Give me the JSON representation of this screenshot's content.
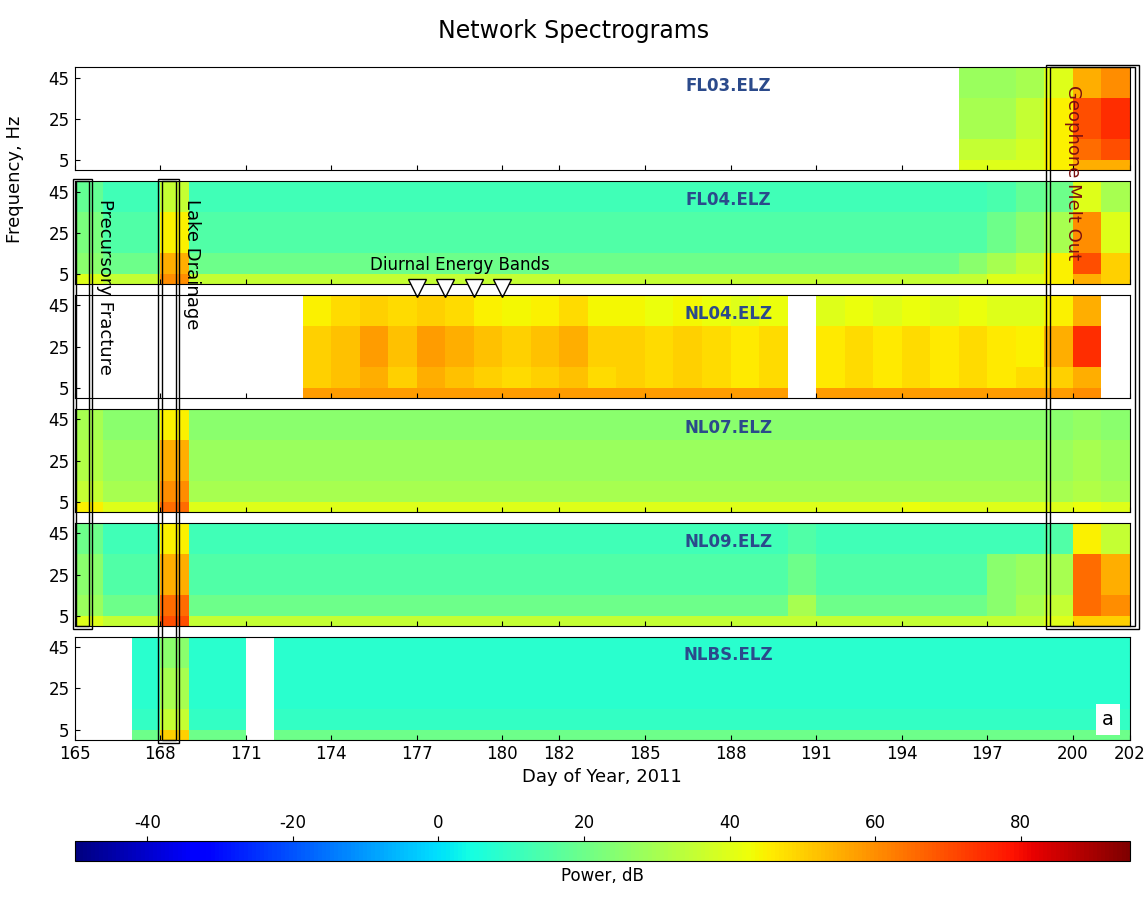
{
  "chart_data": {
    "type": "spectrogram",
    "title": "Network Spectrograms",
    "x_label": "Day of Year, 2011",
    "y_label": "Frequency, Hz",
    "xlim": [
      165,
      202
    ],
    "xticks": [
      165,
      168,
      171,
      174,
      177,
      180,
      182,
      185,
      188,
      191,
      194,
      197,
      200,
      202
    ],
    "ylim": [
      0,
      50
    ],
    "yticks": [
      5,
      25,
      45
    ],
    "x_edges": [
      165,
      166,
      167,
      168,
      169,
      170,
      171,
      172,
      173,
      174,
      175,
      176,
      177,
      178,
      179,
      180,
      181,
      182,
      183,
      184,
      185,
      186,
      187,
      188,
      189,
      190,
      191,
      192,
      193,
      194,
      195,
      196,
      197,
      198,
      199,
      200,
      201,
      202
    ],
    "y_edges": [
      0,
      5,
      15,
      35,
      50
    ],
    "panels": [
      {
        "name": "FL03.ELZ",
        "cells": [
          [
            null,
            null,
            null,
            null,
            null,
            null,
            null,
            null,
            null,
            null,
            null,
            null,
            null,
            null,
            null,
            null,
            null,
            null,
            null,
            null,
            null,
            null,
            null,
            null,
            null,
            null,
            null,
            null,
            null,
            null,
            null,
            40,
            40,
            40,
            45,
            55,
            55
          ],
          [
            null,
            null,
            null,
            null,
            null,
            null,
            null,
            null,
            null,
            null,
            null,
            null,
            null,
            null,
            null,
            null,
            null,
            null,
            null,
            null,
            null,
            null,
            null,
            null,
            null,
            null,
            null,
            null,
            null,
            null,
            null,
            35,
            35,
            38,
            45,
            65,
            70
          ],
          [
            null,
            null,
            null,
            null,
            null,
            null,
            null,
            null,
            null,
            null,
            null,
            null,
            null,
            null,
            null,
            null,
            null,
            null,
            null,
            null,
            null,
            null,
            null,
            null,
            null,
            null,
            null,
            null,
            null,
            null,
            null,
            30,
            30,
            35,
            45,
            70,
            75
          ],
          [
            null,
            null,
            null,
            null,
            null,
            null,
            null,
            null,
            null,
            null,
            null,
            null,
            null,
            null,
            null,
            null,
            null,
            null,
            null,
            null,
            null,
            null,
            null,
            null,
            null,
            null,
            null,
            null,
            null,
            null,
            null,
            28,
            28,
            30,
            40,
            55,
            60
          ]
        ]
      },
      {
        "name": "FL04.ELZ",
        "cells": [
          [
            40,
            35,
            35,
            60,
            35,
            35,
            35,
            35,
            35,
            35,
            35,
            35,
            35,
            35,
            35,
            35,
            35,
            35,
            35,
            35,
            35,
            35,
            35,
            35,
            35,
            35,
            35,
            35,
            35,
            35,
            35,
            35,
            40,
            40,
            45,
            55,
            50
          ],
          [
            25,
            20,
            20,
            55,
            20,
            20,
            20,
            20,
            20,
            20,
            20,
            20,
            20,
            20,
            20,
            20,
            20,
            20,
            20,
            20,
            20,
            20,
            20,
            20,
            20,
            20,
            20,
            20,
            20,
            20,
            20,
            25,
            30,
            35,
            45,
            70,
            50
          ],
          [
            22,
            15,
            15,
            45,
            15,
            15,
            15,
            15,
            15,
            15,
            15,
            15,
            15,
            15,
            15,
            15,
            15,
            15,
            15,
            15,
            15,
            15,
            15,
            15,
            15,
            15,
            15,
            15,
            15,
            15,
            15,
            15,
            20,
            25,
            30,
            60,
            40
          ],
          [
            18,
            12,
            12,
            35,
            12,
            12,
            12,
            12,
            12,
            12,
            12,
            12,
            12,
            12,
            12,
            12,
            12,
            12,
            12,
            12,
            12,
            12,
            12,
            12,
            12,
            12,
            12,
            12,
            12,
            12,
            12,
            12,
            14,
            18,
            20,
            40,
            30
          ]
        ]
      },
      {
        "name": "NL04.ELZ",
        "cells": [
          [
            null,
            null,
            null,
            null,
            null,
            null,
            null,
            null,
            58,
            58,
            58,
            58,
            58,
            58,
            58,
            58,
            58,
            58,
            58,
            58,
            58,
            58,
            58,
            58,
            58,
            null,
            58,
            58,
            58,
            58,
            58,
            58,
            58,
            58,
            58,
            60,
            null
          ],
          [
            null,
            null,
            null,
            null,
            null,
            null,
            null,
            null,
            50,
            52,
            55,
            50,
            55,
            52,
            50,
            48,
            50,
            52,
            48,
            50,
            48,
            50,
            48,
            46,
            48,
            null,
            46,
            48,
            46,
            48,
            46,
            48,
            46,
            48,
            50,
            55,
            null
          ],
          [
            null,
            null,
            null,
            null,
            null,
            null,
            null,
            null,
            50,
            52,
            58,
            52,
            58,
            55,
            52,
            50,
            52,
            55,
            50,
            50,
            48,
            50,
            48,
            46,
            48,
            null,
            46,
            48,
            46,
            48,
            46,
            48,
            46,
            45,
            55,
            75,
            null
          ],
          [
            null,
            null,
            null,
            null,
            null,
            null,
            null,
            null,
            45,
            48,
            50,
            48,
            50,
            48,
            45,
            44,
            45,
            48,
            44,
            44,
            42,
            44,
            42,
            40,
            42,
            null,
            40,
            42,
            40,
            42,
            40,
            42,
            40,
            40,
            45,
            55,
            null
          ]
        ]
      },
      {
        "name": "NL07.ELZ",
        "cells": [
          [
            45,
            40,
            40,
            65,
            40,
            40,
            40,
            40,
            40,
            40,
            40,
            40,
            40,
            40,
            40,
            40,
            40,
            40,
            40,
            40,
            40,
            40,
            40,
            40,
            40,
            40,
            40,
            40,
            40,
            42,
            40,
            40,
            40,
            40,
            40,
            42,
            40
          ],
          [
            35,
            30,
            30,
            60,
            30,
            30,
            30,
            30,
            30,
            30,
            30,
            30,
            30,
            30,
            30,
            30,
            30,
            30,
            30,
            30,
            30,
            30,
            30,
            30,
            30,
            30,
            30,
            30,
            30,
            30,
            30,
            30,
            30,
            30,
            30,
            32,
            30
          ],
          [
            32,
            28,
            28,
            55,
            28,
            28,
            28,
            28,
            28,
            28,
            28,
            28,
            28,
            28,
            28,
            28,
            28,
            28,
            28,
            28,
            28,
            28,
            28,
            28,
            28,
            28,
            28,
            28,
            28,
            28,
            28,
            28,
            28,
            28,
            28,
            30,
            28
          ],
          [
            30,
            25,
            25,
            45,
            25,
            25,
            25,
            25,
            25,
            25,
            25,
            25,
            25,
            25,
            25,
            25,
            25,
            25,
            25,
            25,
            25,
            25,
            25,
            25,
            25,
            25,
            25,
            25,
            25,
            25,
            25,
            25,
            25,
            25,
            25,
            27,
            25
          ]
        ]
      },
      {
        "name": "NL09.ELZ",
        "cells": [
          [
            40,
            35,
            35,
            70,
            35,
            35,
            35,
            35,
            35,
            35,
            35,
            35,
            35,
            35,
            35,
            35,
            35,
            35,
            35,
            35,
            35,
            35,
            35,
            35,
            35,
            35,
            35,
            35,
            35,
            35,
            35,
            35,
            35,
            35,
            40,
            50,
            50
          ],
          [
            28,
            20,
            20,
            65,
            20,
            20,
            20,
            20,
            20,
            20,
            20,
            20,
            20,
            20,
            20,
            20,
            20,
            20,
            20,
            20,
            20,
            20,
            20,
            20,
            20,
            30,
            20,
            20,
            20,
            20,
            20,
            20,
            25,
            30,
            35,
            65,
            60
          ],
          [
            25,
            15,
            15,
            55,
            15,
            15,
            15,
            15,
            15,
            15,
            15,
            15,
            15,
            15,
            15,
            15,
            15,
            15,
            15,
            15,
            15,
            15,
            15,
            15,
            15,
            20,
            15,
            15,
            15,
            15,
            15,
            15,
            25,
            28,
            30,
            65,
            55
          ],
          [
            20,
            12,
            12,
            45,
            12,
            12,
            12,
            12,
            12,
            12,
            12,
            12,
            12,
            12,
            12,
            12,
            12,
            12,
            12,
            12,
            12,
            12,
            12,
            12,
            12,
            15,
            12,
            12,
            12,
            12,
            12,
            12,
            12,
            12,
            15,
            45,
            35
          ]
        ]
      },
      {
        "name": "NLBS.ELZ",
        "cells": [
          [
            null,
            null,
            20,
            50,
            20,
            20,
            null,
            20,
            20,
            20,
            20,
            20,
            20,
            20,
            20,
            20,
            20,
            20,
            20,
            20,
            20,
            20,
            20,
            20,
            20,
            20,
            20,
            20,
            20,
            20,
            20,
            20,
            20,
            20,
            20,
            20,
            20
          ],
          [
            null,
            null,
            10,
            35,
            10,
            10,
            null,
            10,
            10,
            10,
            10,
            10,
            10,
            10,
            10,
            10,
            10,
            10,
            10,
            10,
            10,
            10,
            10,
            10,
            10,
            10,
            10,
            10,
            10,
            10,
            10,
            10,
            10,
            10,
            10,
            10,
            10
          ],
          [
            null,
            null,
            8,
            30,
            8,
            8,
            null,
            8,
            8,
            8,
            8,
            8,
            8,
            8,
            8,
            8,
            8,
            8,
            8,
            8,
            8,
            8,
            8,
            8,
            8,
            8,
            8,
            8,
            8,
            8,
            8,
            8,
            8,
            8,
            8,
            8,
            8
          ],
          [
            null,
            null,
            8,
            25,
            8,
            8,
            null,
            8,
            8,
            8,
            8,
            8,
            8,
            8,
            8,
            8,
            8,
            8,
            8,
            8,
            8,
            8,
            8,
            8,
            8,
            8,
            8,
            8,
            8,
            8,
            8,
            8,
            8,
            8,
            8,
            8,
            8
          ]
        ]
      }
    ],
    "colorbar": {
      "label": "Power, dB",
      "range": [
        -50,
        95
      ],
      "ticks": [
        -40,
        -20,
        0,
        20,
        40,
        60,
        80
      ]
    },
    "boxes": [
      {
        "text": "Precursory Fracture",
        "x_range": [
          165.05,
          165.5
        ],
        "panels": [
          "FL04.ELZ",
          "NL09.ELZ"
        ],
        "color": "#000000"
      },
      {
        "text": "Lake Drainage",
        "x_range": [
          168.05,
          168.55
        ],
        "panels": [
          "FL04.ELZ",
          "NLBS.ELZ"
        ],
        "color": "#000000"
      },
      {
        "text": "Geophone Melt Out",
        "x_range": [
          199.2,
          202.2
        ],
        "panels": [
          "FL03.ELZ",
          "NL09.ELZ"
        ],
        "color": "#7a1010"
      }
    ],
    "diurnal": {
      "text": "Diurnal Energy Bands",
      "days": [
        177,
        178,
        179,
        180
      ],
      "panel": "NL04.ELZ"
    },
    "panel_letter": "a"
  }
}
